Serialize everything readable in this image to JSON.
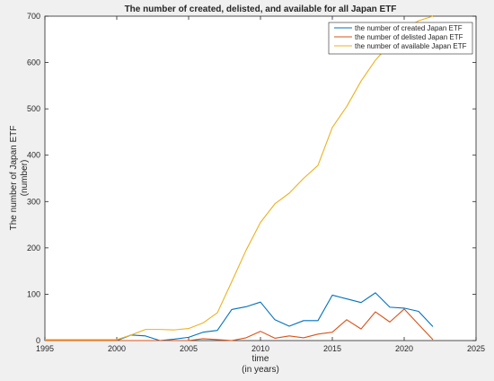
{
  "chart_data": {
    "type": "line",
    "title": "The number of created, delisted, and available for all Japan ETF",
    "xlabel": [
      "time",
      "(in years)"
    ],
    "ylabel": [
      "The number of Japan ETF",
      "(number)"
    ],
    "xlim": [
      1995,
      2025
    ],
    "ylim": [
      0,
      700
    ],
    "xticks": [
      1995,
      2000,
      2005,
      2010,
      2015,
      2020,
      2025
    ],
    "yticks": [
      0,
      100,
      200,
      300,
      400,
      500,
      600,
      700
    ],
    "grid": false,
    "legend_position": "top-right",
    "series": [
      {
        "name": "the number of created Japan ETF",
        "color": "#0072bd",
        "x": [
          1995,
          1996,
          1997,
          1998,
          1999,
          2000,
          2001,
          2002,
          2003,
          2004,
          2005,
          2006,
          2007,
          2008,
          2009,
          2010,
          2011,
          2012,
          2013,
          2014,
          2015,
          2016,
          2017,
          2018,
          2019,
          2020,
          2021,
          2022
        ],
        "y": [
          0,
          0,
          0,
          0,
          0,
          0,
          12,
          10,
          0,
          3,
          7,
          18,
          22,
          67,
          73,
          83,
          45,
          31,
          43,
          43,
          98,
          90,
          82,
          103,
          72,
          70,
          63,
          30
        ]
      },
      {
        "name": "the number of delisted Japan ETF",
        "color": "#d95319",
        "x": [
          1995,
          1996,
          1997,
          1998,
          1999,
          2000,
          2001,
          2002,
          2003,
          2004,
          2005,
          2006,
          2007,
          2008,
          2009,
          2010,
          2011,
          2012,
          2013,
          2014,
          2015,
          2016,
          2017,
          2018,
          2019,
          2020,
          2021,
          2022
        ],
        "y": [
          0,
          0,
          0,
          0,
          0,
          0,
          0,
          0,
          0,
          0,
          0,
          4,
          2,
          0,
          6,
          20,
          5,
          10,
          6,
          14,
          18,
          45,
          25,
          62,
          40,
          68,
          35,
          2
        ]
      },
      {
        "name": "the number of available Japan ETF",
        "color": "#edb120",
        "x": [
          1995,
          1996,
          1997,
          1998,
          1999,
          2000,
          2001,
          2002,
          2003,
          2004,
          2005,
          2006,
          2007,
          2008,
          2009,
          2010,
          2011,
          2012,
          2013,
          2014,
          2015,
          2016,
          2017,
          2018,
          2019,
          2020,
          2021,
          2022
        ],
        "y": [
          2,
          2,
          2,
          2,
          2,
          2,
          12,
          24,
          24,
          23,
          26,
          38,
          60,
          127,
          195,
          255,
          295,
          318,
          350,
          378,
          460,
          505,
          560,
          605,
          640,
          672,
          690,
          700
        ]
      }
    ]
  }
}
